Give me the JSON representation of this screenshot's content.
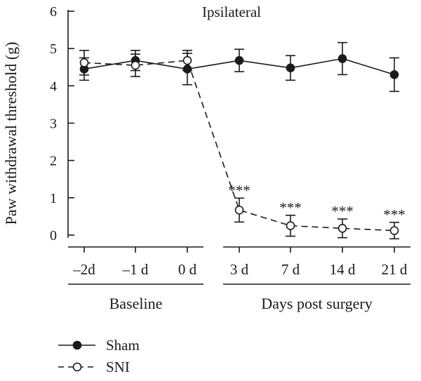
{
  "chart_data": {
    "type": "line",
    "title": "Ipsilateral",
    "ylabel": "Paw withdrawal threshold (g)",
    "xlabel": "",
    "ylim": [
      0,
      6
    ],
    "yticks": [
      0,
      1,
      2,
      3,
      4,
      5,
      6
    ],
    "categories": [
      "–2d",
      "–1 d",
      "0 d",
      "3 d",
      "7 d",
      "14 d",
      "21 d"
    ],
    "groups": [
      {
        "label": "Baseline",
        "from": 0,
        "to": 2
      },
      {
        "label": "Days post surgery",
        "from": 3,
        "to": 6
      }
    ],
    "series": [
      {
        "name": "Sham",
        "marker": "filled-circle",
        "line": "solid",
        "color": "#1a1a1a",
        "values": [
          4.45,
          4.68,
          4.45,
          4.68,
          4.48,
          4.73,
          4.3
        ],
        "errors": [
          0.3,
          0.27,
          0.42,
          0.3,
          0.33,
          0.43,
          0.45
        ],
        "annotations": [
          "",
          "",
          "",
          "",
          "",
          "",
          ""
        ]
      },
      {
        "name": "SNI",
        "marker": "open-circle",
        "line": "dashed",
        "color": "#1a1a1a",
        "values": [
          4.62,
          4.55,
          4.68,
          0.67,
          0.25,
          0.18,
          0.12
        ],
        "errors": [
          0.33,
          0.3,
          0.27,
          0.32,
          0.28,
          0.25,
          0.22
        ],
        "annotations": [
          "",
          "",
          "",
          "***",
          "***",
          "***",
          "***"
        ]
      }
    ],
    "legend": {
      "position": "bottom-left",
      "entries": [
        "Sham",
        "SNI"
      ]
    }
  }
}
